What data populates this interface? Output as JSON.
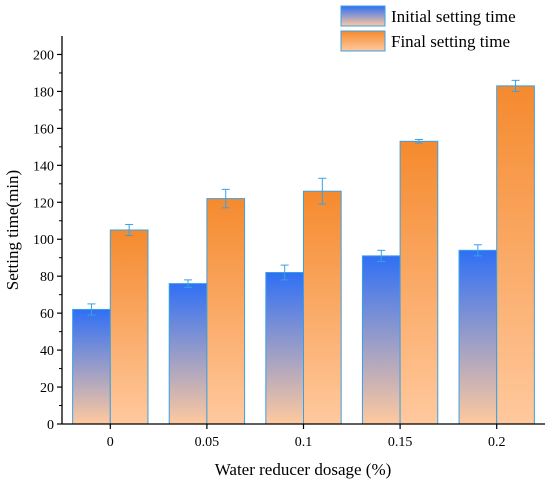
{
  "chart_data": {
    "type": "bar",
    "xlabel": "Water reducer dosage (%)",
    "ylabel": "Setting time(min)",
    "categories": [
      "0",
      "0.05",
      "0.1",
      "0.15",
      "0.2"
    ],
    "ylim": [
      0,
      210
    ],
    "yticks": [
      0,
      20,
      40,
      60,
      80,
      100,
      120,
      140,
      160,
      180,
      200
    ],
    "grid": false,
    "legend_position": "top-right",
    "series": [
      {
        "name": "Initial setting time",
        "values": [
          62,
          76,
          82,
          91,
          94
        ],
        "errors": [
          3,
          2,
          4,
          3,
          3
        ],
        "color_top": "#2f6ff5",
        "color_bottom": "#ffc99e"
      },
      {
        "name": "Final setting time",
        "values": [
          105,
          122,
          126,
          153,
          183
        ],
        "errors": [
          3,
          5,
          7,
          1,
          3
        ],
        "color_top": "#f58a2e",
        "color_bottom": "#ffc99e"
      }
    ],
    "bar_edge_color": "#3aa0e6",
    "error_bar_color": "#3aa0e6"
  }
}
